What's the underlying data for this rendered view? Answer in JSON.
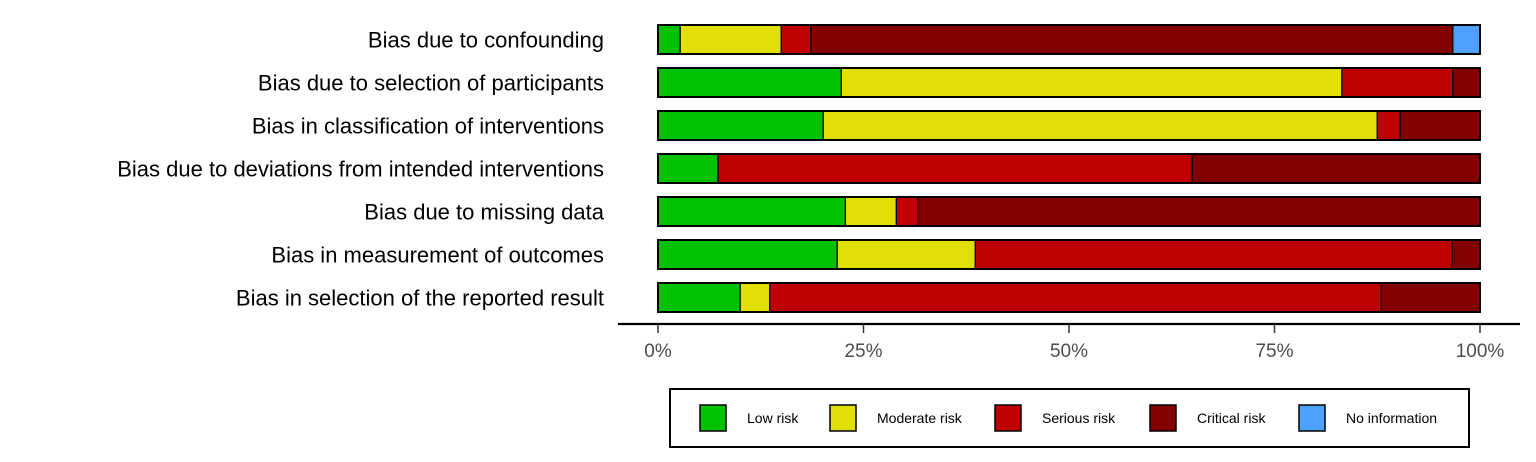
{
  "chart_data": {
    "type": "bar",
    "orientation": "horizontal",
    "stacked": true,
    "categories": [
      "Bias due to confounding",
      "Bias due to selection of participants",
      "Bias in classification of interventions",
      "Bias due to deviations from intended interventions",
      "Bias due to missing data",
      "Bias in measurement of outcomes",
      "Bias in selection of the reported result"
    ],
    "series": [
      {
        "name": "Low risk",
        "color": "#02c100",
        "values": [
          2.7,
          22.3,
          20.1,
          7.3,
          22.8,
          21.8,
          10.0
        ]
      },
      {
        "name": "Moderate risk",
        "color": "#e2df07",
        "values": [
          12.3,
          60.9,
          67.4,
          0,
          6.2,
          16.8,
          3.6
        ]
      },
      {
        "name": "Serious risk",
        "color": "#bf0000",
        "values": [
          3.6,
          13.5,
          2.8,
          57.7,
          2.6,
          58.0,
          74.4
        ]
      },
      {
        "name": "Critical risk",
        "color": "#820000",
        "values": [
          78.1,
          3.3,
          9.7,
          35.0,
          68.4,
          3.4,
          12.0
        ]
      },
      {
        "name": "No information",
        "color": "#4ea1ff",
        "values": [
          3.3,
          0,
          0,
          0,
          0,
          0,
          0
        ]
      }
    ],
    "x_ticks": [
      "0%",
      "25%",
      "50%",
      "75%",
      "100%"
    ],
    "xlim": [
      0,
      100
    ],
    "xlabel": "",
    "ylabel": "",
    "grid": false,
    "legend_position": "bottom"
  }
}
